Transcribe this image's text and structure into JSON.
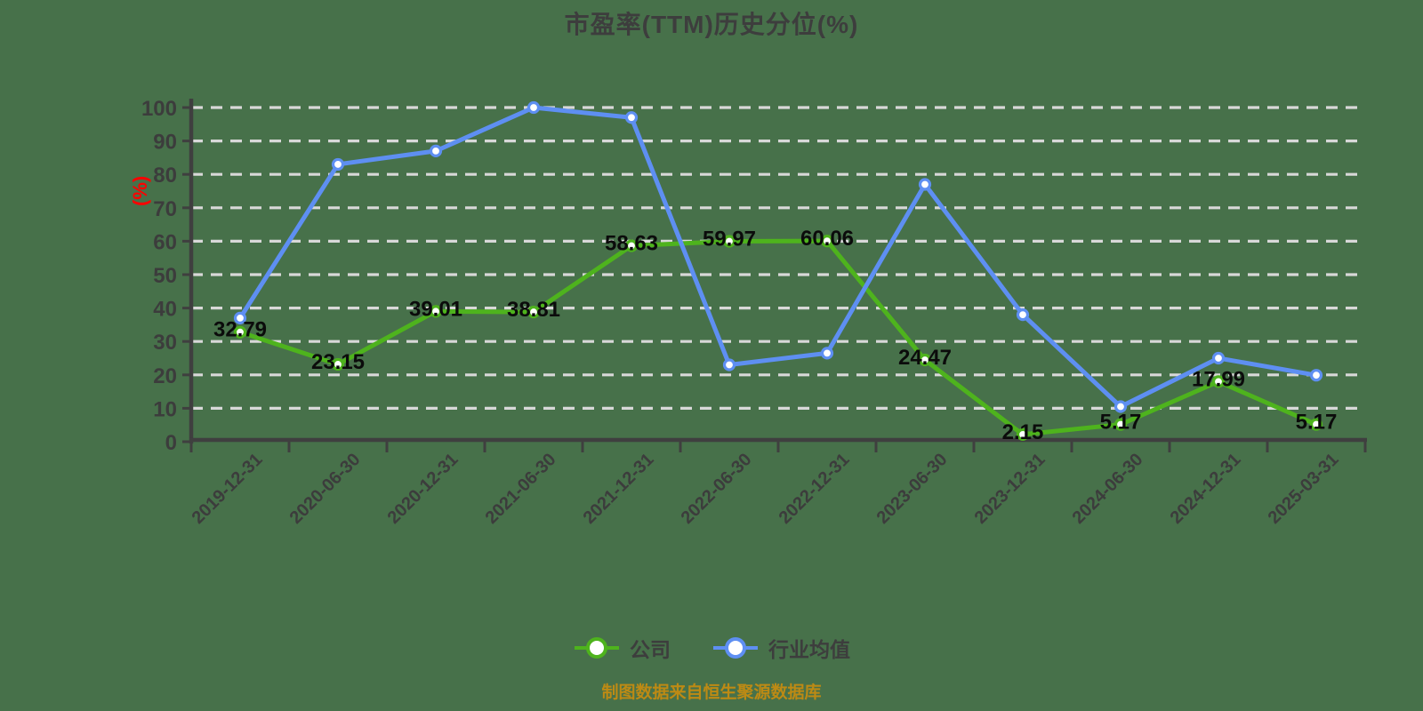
{
  "colors": {
    "background": "#47714a",
    "title_text": "#3d3d3d",
    "axis": "#3f3f3f",
    "tick_label": "#3c3c3c",
    "grid_line": "#d8d8d8",
    "value_label": "#0b0b0b",
    "unit_label": "#ff0000",
    "legend_text": "#3d3d3d",
    "caption_text": "#bd8a14",
    "marker_fill": "#ffffff",
    "company_green": "#4eb31d",
    "industry_blue": "#5e8ff2"
  },
  "chart_data": {
    "type": "line",
    "title": "市盈率(TTM)历史分位(%)",
    "y_unit": "(%)",
    "categories": [
      "2019-12-31",
      "2020-06-30",
      "2020-12-31",
      "2021-06-30",
      "2021-12-31",
      "2022-06-30",
      "2022-12-31",
      "2023-06-30",
      "2023-12-31",
      "2024-06-30",
      "2024-12-31",
      "2025-03-31"
    ],
    "series": [
      {
        "name": "公司",
        "color": "#4eb31d",
        "values": [
          32.79,
          23.15,
          39.01,
          38.81,
          58.63,
          59.97,
          60.06,
          24.47,
          2.15,
          5.17,
          17.99,
          5.17
        ],
        "point_labels": [
          "32.79",
          "23.15",
          "39.01",
          "38.81",
          "58.63",
          "59.97",
          "60.06",
          "24.47",
          "2.15",
          "5.17",
          "17.99",
          "5.17"
        ]
      },
      {
        "name": "行业均值",
        "color": "#5e8ff2",
        "values": [
          37,
          83,
          87,
          100,
          97,
          23,
          26.5,
          77,
          38,
          10.5,
          25,
          19.9
        ],
        "point_labels": []
      }
    ],
    "ylim": [
      0,
      100
    ],
    "y_tick_step": 10,
    "grid": "horizontal-dashed",
    "legend_position": "bottom",
    "caption": "制图数据来自恒生聚源数据库"
  }
}
